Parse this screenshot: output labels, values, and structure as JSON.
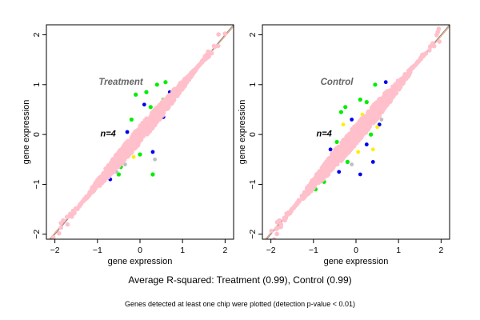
{
  "chart_data": [
    {
      "type": "scatter",
      "title": "Treatment",
      "n_label": "n=4",
      "xlabel": "gene expression",
      "ylabel": "gene expression",
      "xlim": [
        -2.2,
        2.2
      ],
      "ylim": [
        -2.1,
        2.2
      ],
      "xticks": [
        -2,
        -1,
        0,
        1,
        2
      ],
      "yticks": [
        -2,
        -1,
        0,
        1,
        2
      ],
      "colors": {
        "bulk": "#ffc0cb",
        "replicate2": "#00ee00",
        "replicate3": "#0000ee",
        "replicate4": "#ffee00",
        "other": "#bebebe",
        "diagonal": "#808080",
        "fit": "#e9a16b"
      },
      "cloud": {
        "x_range": [
          -1.15,
          1.15
        ],
        "spread": 0.17
      },
      "outliers": [
        {
          "x": -0.3,
          "y": 0.05,
          "series": "replicate3"
        },
        {
          "x": 0.55,
          "y": 0.35,
          "series": "replicate3"
        },
        {
          "x": -0.45,
          "y": -0.55,
          "series": "replicate3"
        },
        {
          "x": 0.7,
          "y": 0.85,
          "series": "replicate3"
        },
        {
          "x": 0.3,
          "y": -0.35,
          "series": "replicate3"
        },
        {
          "x": -0.7,
          "y": -0.9,
          "series": "replicate3"
        },
        {
          "x": 0.1,
          "y": 0.6,
          "series": "replicate3"
        },
        {
          "x": 0.4,
          "y": 1.0,
          "series": "replicate2"
        },
        {
          "x": 0.6,
          "y": 1.05,
          "series": "replicate2"
        },
        {
          "x": -0.1,
          "y": 0.8,
          "series": "replicate2"
        },
        {
          "x": 0.25,
          "y": 0.55,
          "series": "replicate2"
        },
        {
          "x": -0.45,
          "y": -0.65,
          "series": "replicate2"
        },
        {
          "x": -0.5,
          "y": -0.8,
          "series": "replicate2"
        },
        {
          "x": 0.8,
          "y": 0.9,
          "series": "replicate2"
        },
        {
          "x": 0.0,
          "y": -0.4,
          "series": "replicate2"
        },
        {
          "x": 0.3,
          "y": -0.8,
          "series": "replicate2"
        },
        {
          "x": -0.3,
          "y": -0.35,
          "series": "replicate2"
        },
        {
          "x": 0.15,
          "y": 0.85,
          "series": "replicate2"
        },
        {
          "x": -0.6,
          "y": -0.7,
          "series": "replicate2"
        },
        {
          "x": 0.55,
          "y": 0.7,
          "series": "replicate2"
        },
        {
          "x": -0.2,
          "y": 0.3,
          "series": "replicate2"
        },
        {
          "x": 0.9,
          "y": 0.95,
          "series": "replicate2"
        },
        {
          "x": -0.8,
          "y": -0.85,
          "series": "replicate2"
        },
        {
          "x": 0.45,
          "y": 0.3,
          "series": "replicate4"
        },
        {
          "x": -0.15,
          "y": -0.45,
          "series": "replicate4"
        },
        {
          "x": 0.35,
          "y": -0.5,
          "series": "other"
        },
        {
          "x": -0.35,
          "y": -0.6,
          "series": "other"
        },
        {
          "x": 0.2,
          "y": 0.05,
          "series": "other"
        },
        {
          "x": -0.55,
          "y": -0.75,
          "series": "other"
        }
      ]
    },
    {
      "type": "scatter",
      "title": "Control",
      "n_label": "n=4",
      "xlabel": "gene expression",
      "ylabel": "gene expression",
      "xlim": [
        -2.2,
        2.2
      ],
      "ylim": [
        -2.1,
        2.2
      ],
      "xticks": [
        -2,
        -1,
        0,
        1,
        2
      ],
      "yticks": [
        -2,
        -1,
        0,
        1,
        2
      ],
      "colors": {
        "bulk": "#ffc0cb",
        "replicate2": "#00ee00",
        "replicate3": "#0000ee",
        "replicate4": "#ffee00",
        "other": "#bebebe",
        "diagonal": "#808080",
        "fit": "#e9a16b"
      },
      "cloud": {
        "x_range": [
          -1.2,
          1.2
        ],
        "spread": 0.2
      },
      "outliers": [
        {
          "x": -0.1,
          "y": 0.3,
          "series": "replicate3"
        },
        {
          "x": 0.55,
          "y": 0.2,
          "series": "replicate3"
        },
        {
          "x": 0.25,
          "y": -0.2,
          "series": "replicate3"
        },
        {
          "x": -0.4,
          "y": -0.75,
          "series": "replicate3"
        },
        {
          "x": 0.7,
          "y": 1.05,
          "series": "replicate3"
        },
        {
          "x": 0.4,
          "y": -0.55,
          "series": "replicate3"
        },
        {
          "x": -0.6,
          "y": -0.3,
          "series": "replicate3"
        },
        {
          "x": 0.1,
          "y": -0.8,
          "series": "replicate3"
        },
        {
          "x": -0.35,
          "y": 0.45,
          "series": "replicate2"
        },
        {
          "x": -0.55,
          "y": -0.6,
          "series": "replicate2"
        },
        {
          "x": 0.45,
          "y": 1.0,
          "series": "replicate2"
        },
        {
          "x": 0.25,
          "y": 0.65,
          "series": "replicate2"
        },
        {
          "x": 0.85,
          "y": 0.85,
          "series": "replicate2"
        },
        {
          "x": -0.2,
          "y": -0.55,
          "series": "replicate2"
        },
        {
          "x": 0.35,
          "y": 0.0,
          "series": "replicate2"
        },
        {
          "x": -0.75,
          "y": -0.95,
          "series": "replicate2"
        },
        {
          "x": -0.25,
          "y": 0.55,
          "series": "replicate2"
        },
        {
          "x": 0.6,
          "y": 0.55,
          "series": "replicate2"
        },
        {
          "x": -0.45,
          "y": -0.15,
          "series": "replicate2"
        },
        {
          "x": 0.1,
          "y": 0.7,
          "series": "replicate2"
        },
        {
          "x": -0.95,
          "y": -1.1,
          "series": "replicate2"
        },
        {
          "x": 0.5,
          "y": 0.15,
          "series": "replicate4"
        },
        {
          "x": 0.4,
          "y": -0.3,
          "series": "replicate4"
        },
        {
          "x": 0.05,
          "y": -0.35,
          "series": "replicate4"
        },
        {
          "x": -0.3,
          "y": 0.2,
          "series": "replicate4"
        },
        {
          "x": -0.65,
          "y": -0.5,
          "series": "replicate4"
        },
        {
          "x": 0.15,
          "y": 0.4,
          "series": "replicate4"
        },
        {
          "x": 0.3,
          "y": 0.45,
          "series": "other"
        },
        {
          "x": -0.5,
          "y": -0.45,
          "series": "other"
        },
        {
          "x": 0.6,
          "y": 0.3,
          "series": "other"
        },
        {
          "x": -0.1,
          "y": -0.6,
          "series": "other"
        }
      ]
    }
  ],
  "caption": "Average R-squared: Treatment (0.99), Control (0.99)",
  "footnote": "Genes detected at least one chip were plotted (detection p-value < 0.01)"
}
